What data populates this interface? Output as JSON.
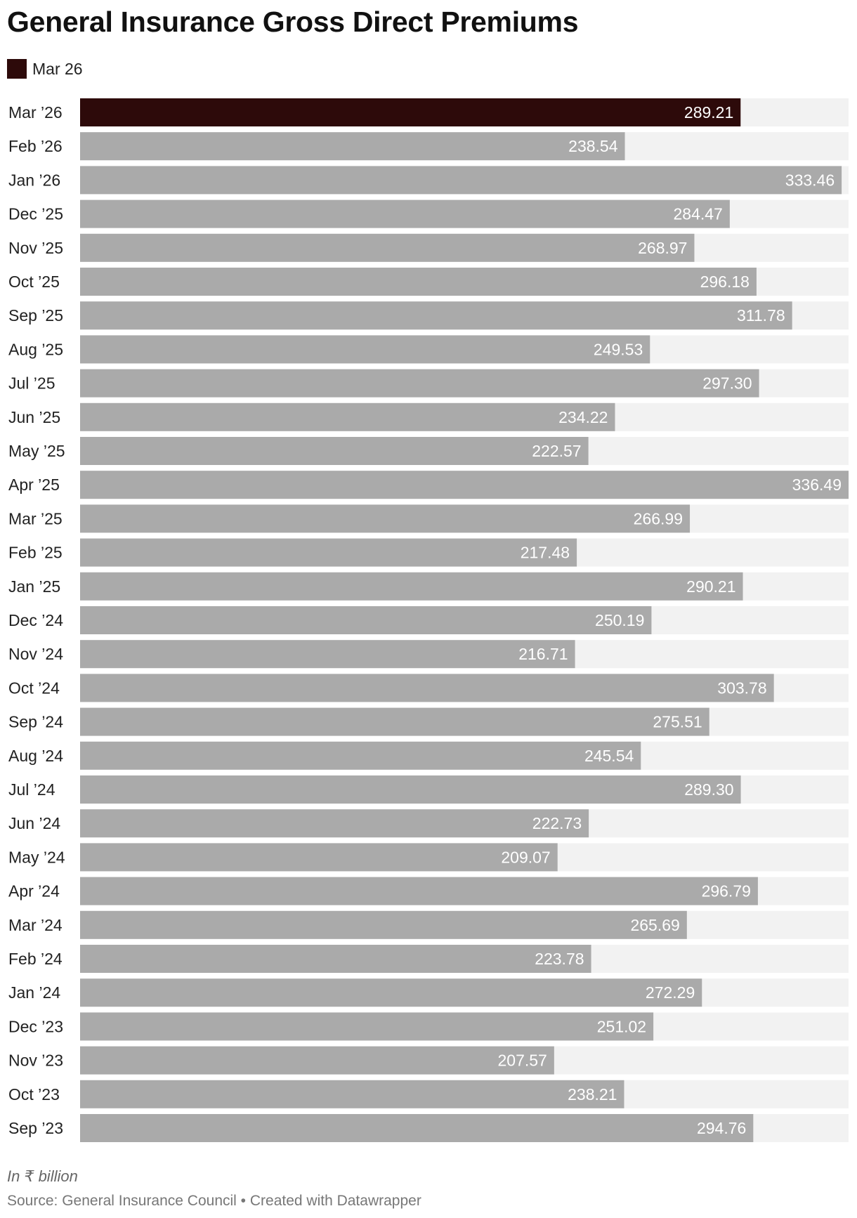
{
  "title": "General Insurance Gross Direct Premiums",
  "legend": [
    {
      "label": "Mar 26",
      "color": "#2d0a0a"
    }
  ],
  "colors": {
    "highlight": "#2d0a0a",
    "bar": "#aaaaaa",
    "track": "#f2f2f2",
    "value_text": "#ffffff"
  },
  "chart_data": {
    "type": "bar",
    "orientation": "horizontal",
    "categories": [
      "Mar ’26",
      "Feb ’26",
      "Jan ’26",
      "Dec ’25",
      "Nov ’25",
      "Oct ’25",
      "Sep ’25",
      "Aug ’25",
      "Jul ’25",
      "Jun ’25",
      "May ’25",
      "Apr ’25",
      "Mar ’25",
      "Feb ’25",
      "Jan ’25",
      "Dec ’24",
      "Nov ’24",
      "Oct ’24",
      "Sep ’24",
      "Aug ’24",
      "Jul ’24",
      "Jun ’24",
      "May ’24",
      "Apr ’24",
      "Mar ’24",
      "Feb ’24",
      "Jan ’24",
      "Dec ’23",
      "Nov ’23",
      "Oct ’23",
      "Sep ’23"
    ],
    "values": [
      289.21,
      238.54,
      333.46,
      284.47,
      268.97,
      296.18,
      311.78,
      249.53,
      297.3,
      234.22,
      222.57,
      336.49,
      266.99,
      217.48,
      290.21,
      250.19,
      216.71,
      303.78,
      275.51,
      245.54,
      289.3,
      222.73,
      209.07,
      296.79,
      265.69,
      223.78,
      272.29,
      251.02,
      207.57,
      238.21,
      294.76
    ],
    "value_labels": [
      "289.21",
      "238.54",
      "333.46",
      "284.47",
      "268.97",
      "296.18",
      "311.78",
      "249.53",
      "297.30",
      "234.22",
      "222.57",
      "336.49",
      "266.99",
      "217.48",
      "290.21",
      "250.19",
      "216.71",
      "303.78",
      "275.51",
      "245.54",
      "289.30",
      "222.73",
      "209.07",
      "296.79",
      "265.69",
      "223.78",
      "272.29",
      "251.02",
      "207.57",
      "238.21",
      "294.76"
    ],
    "highlight_index": 0,
    "xlim": [
      0,
      336.49
    ],
    "grid": false,
    "legend_position": "top-left"
  },
  "notes": {
    "unit": "In ₹ billion",
    "source": "Source: General Insurance Council • Created with Datawrapper"
  }
}
